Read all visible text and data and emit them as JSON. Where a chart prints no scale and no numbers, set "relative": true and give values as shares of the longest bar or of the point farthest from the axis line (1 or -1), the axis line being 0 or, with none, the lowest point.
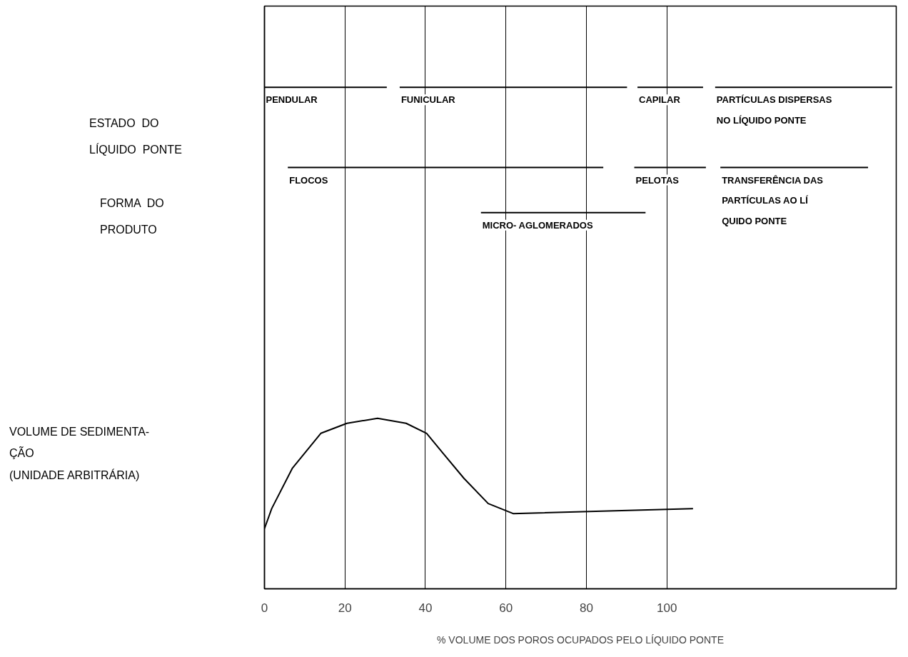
{
  "chart_data": {
    "type": "line",
    "relative": true,
    "xlabel": "% VOLUME DOS POROS OCUPADOS PELO LÍQUIDO PONTE",
    "xlim": [
      0,
      157
    ],
    "xticks": [
      0,
      20,
      40,
      60,
      80,
      100
    ],
    "grid": "x",
    "series": [
      {
        "color": "#000000",
        "x": [
          0,
          1.8,
          6.9,
          14,
          20.5,
          28.1,
          35.2,
          40.3,
          44.4,
          49.6,
          55.6,
          61.8,
          106.5
        ],
        "values": [
          0.12,
          0.16,
          0.24,
          0.31,
          0.33,
          0.34,
          0.33,
          0.31,
          0.27,
          0.22,
          0.17,
          0.15,
          0.16
        ]
      },
      {
        "name": "PENDULAR",
        "color": "#000000",
        "x": [
          0,
          30.4
        ],
        "values": [
          1,
          1
        ]
      },
      {
        "name": "FUNICULAR",
        "color": "#000000",
        "x": [
          33.6,
          90.1
        ],
        "values": [
          1,
          1
        ]
      },
      {
        "name": "CAPILAR",
        "color": "#000000",
        "x": [
          92.7,
          109
        ],
        "values": [
          1,
          1
        ]
      },
      {
        "name": "PARTÍCULAS DISPERSAS\nNO LÍQUIDO PONTE",
        "color": "#000000",
        "x": [
          112,
          156
        ],
        "values": [
          1,
          1
        ]
      },
      {
        "name": "FLOCOS",
        "color": "#000000",
        "x": [
          5.8,
          84.2
        ],
        "values": [
          0.84,
          0.84
        ]
      },
      {
        "name": "PELOTAS",
        "color": "#000000",
        "x": [
          91.9,
          109.7
        ],
        "values": [
          0.84,
          0.84
        ]
      },
      {
        "name": "TRANSFERÊNCIA DAS\nPARTÍCULAS AO LÍ\nQUIDO PONTE",
        "color": "#000000",
        "x": [
          113.3,
          150
        ],
        "values": [
          0.84,
          0.84
        ]
      },
      {
        "name": "MICRO- AGLOMERADOS",
        "color": "#000000",
        "x": [
          53.8,
          94.7
        ],
        "values": [
          0.75,
          0.75
        ]
      }
    ],
    "annotations": [
      "ESTADO  DO\nLÍQUIDO  PONTE",
      "FORMA  DO\nPRODUTO",
      "VOLUME DE SEDIMENTA-\nÇÃO\n(UNIDADE ARBITRÁRIA)"
    ]
  }
}
